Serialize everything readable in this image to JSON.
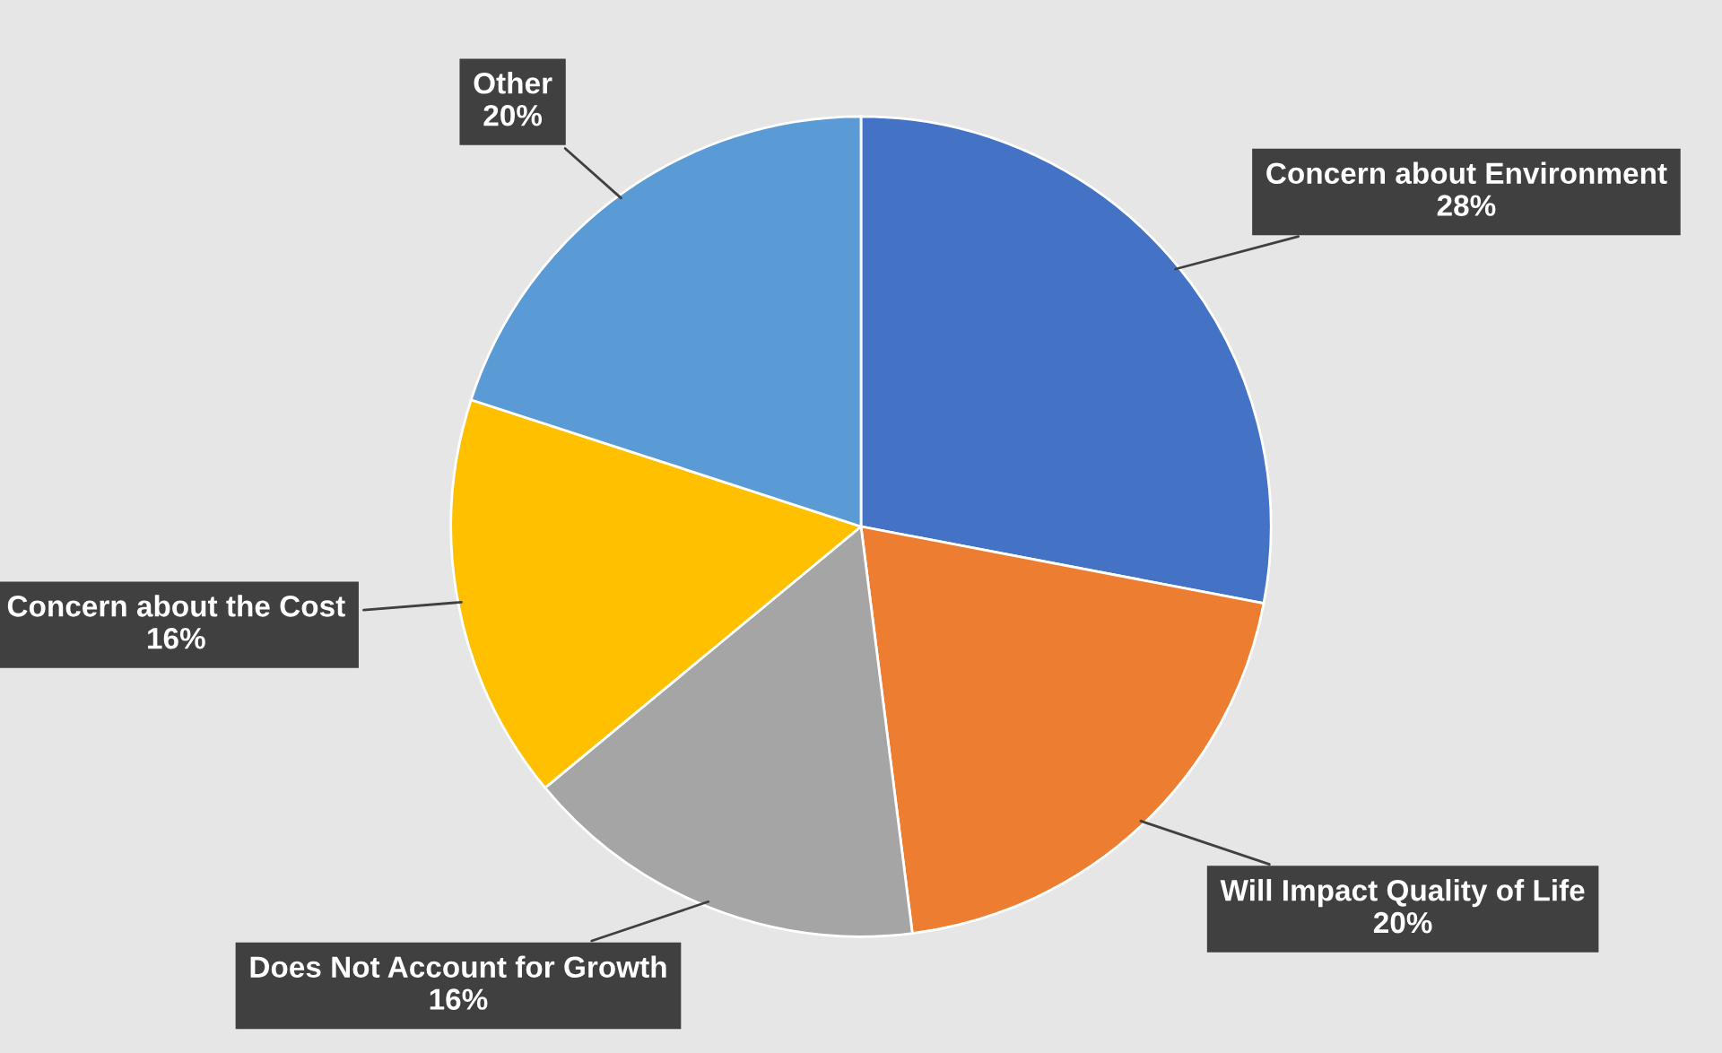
{
  "chart_data": {
    "type": "pie",
    "categories": [
      "Concern about Environment",
      "Will Impact Quality of Life",
      "Does Not Account for Growth",
      "Concern about the Cost",
      "Other"
    ],
    "values": [
      28,
      20,
      16,
      16,
      20
    ],
    "value_labels": [
      "28%",
      "20%",
      "16%",
      "16%",
      "20%"
    ],
    "colors": [
      "#4472c4",
      "#ed7d31",
      "#a5a5a5",
      "#ffc000",
      "#5b9bd5"
    ],
    "legend": false
  }
}
